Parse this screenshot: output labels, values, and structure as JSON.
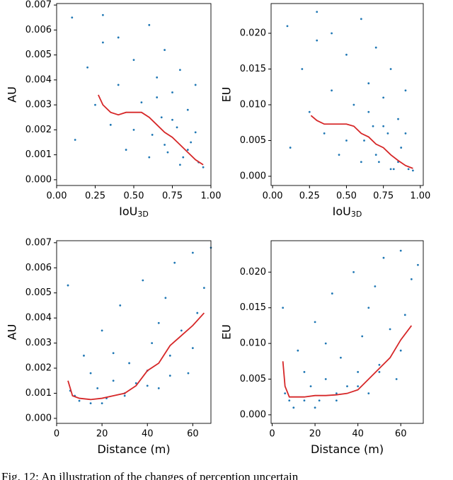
{
  "chart_data": [
    {
      "type": "scatter",
      "ylabel": "AU",
      "xlabel": "IoU",
      "xlabel_sub": "3D",
      "xlim": [
        0,
        1
      ],
      "ylim": [
        -0.00023,
        0.00706
      ],
      "xticks": [
        {
          "value": 0,
          "label": "0.00"
        },
        {
          "value": 0.25,
          "label": "0.25"
        },
        {
          "value": 0.5,
          "label": "0.50"
        },
        {
          "value": 0.75,
          "label": "0.75"
        },
        {
          "value": 1,
          "label": "1.00"
        }
      ],
      "yticks": [
        {
          "value": 0,
          "label": "0.000"
        },
        {
          "value": 0.001,
          "label": "0.001"
        },
        {
          "value": 0.002,
          "label": "0.002"
        },
        {
          "value": 0.003,
          "label": "0.003"
        },
        {
          "value": 0.004,
          "label": "0.004"
        },
        {
          "value": 0.005,
          "label": "0.005"
        },
        {
          "value": 0.006,
          "label": "0.006"
        },
        {
          "value": 0.007,
          "label": "0.007"
        }
      ],
      "series": [
        {
          "kind": "scatter",
          "color": "#1f77b4",
          "x": [
            0.1,
            0.12,
            0.2,
            0.25,
            0.3,
            0.35,
            0.4,
            0.45,
            0.5,
            0.55,
            0.6,
            0.62,
            0.65,
            0.68,
            0.7,
            0.72,
            0.75,
            0.78,
            0.8,
            0.82,
            0.85,
            0.87,
            0.9,
            0.92,
            0.95,
            0.6,
            0.7,
            0.8,
            0.75,
            0.85,
            0.5,
            0.4,
            0.3,
            0.65,
            0.9
          ],
          "values": [
            0.0065,
            0.0016,
            0.0045,
            0.003,
            0.0055,
            0.0022,
            0.0038,
            0.0012,
            0.0048,
            0.0031,
            0.0062,
            0.0018,
            0.0041,
            0.0025,
            0.0052,
            0.0011,
            0.0035,
            0.0021,
            0.0044,
            0.0009,
            0.0028,
            0.0015,
            0.0019,
            0.0007,
            0.0005,
            0.0009,
            0.0014,
            0.0006,
            0.0024,
            0.0012,
            0.002,
            0.0057,
            0.0066,
            0.0033,
            0.0038
          ]
        },
        {
          "kind": "line",
          "color": "#d62728",
          "x": [
            0.27,
            0.3,
            0.35,
            0.4,
            0.45,
            0.5,
            0.55,
            0.6,
            0.65,
            0.7,
            0.75,
            0.8,
            0.85,
            0.9,
            0.95
          ],
          "values": [
            0.0034,
            0.003,
            0.0027,
            0.0026,
            0.0027,
            0.0027,
            0.0027,
            0.0025,
            0.0022,
            0.0019,
            0.0017,
            0.0014,
            0.0011,
            0.0008,
            0.0006
          ]
        }
      ]
    },
    {
      "type": "scatter",
      "ylabel": "EU",
      "xlabel": "IoU",
      "xlabel_sub": "3D",
      "xlim": [
        -0.01,
        1.02
      ],
      "ylim": [
        -0.00129,
        0.02416
      ],
      "xticks": [
        {
          "value": 0,
          "label": "0.00"
        },
        {
          "value": 0.25,
          "label": "0.25"
        },
        {
          "value": 0.5,
          "label": "0.50"
        },
        {
          "value": 0.75,
          "label": "0.75"
        },
        {
          "value": 1,
          "label": "1.00"
        }
      ],
      "yticks": [
        {
          "value": 0,
          "label": "0.000"
        },
        {
          "value": 0.005,
          "label": "0.005"
        },
        {
          "value": 0.01,
          "label": "0.010"
        },
        {
          "value": 0.015,
          "label": "0.015"
        },
        {
          "value": 0.02,
          "label": "0.020"
        }
      ],
      "series": [
        {
          "kind": "scatter",
          "color": "#1f77b4",
          "x": [
            0.1,
            0.12,
            0.2,
            0.25,
            0.3,
            0.35,
            0.4,
            0.45,
            0.5,
            0.55,
            0.6,
            0.62,
            0.65,
            0.68,
            0.7,
            0.72,
            0.75,
            0.78,
            0.8,
            0.82,
            0.85,
            0.87,
            0.9,
            0.92,
            0.95,
            0.6,
            0.7,
            0.8,
            0.75,
            0.85,
            0.5,
            0.4,
            0.3,
            0.65,
            0.9
          ],
          "values": [
            0.021,
            0.004,
            0.015,
            0.009,
            0.019,
            0.006,
            0.012,
            0.003,
            0.017,
            0.01,
            0.022,
            0.005,
            0.013,
            0.007,
            0.018,
            0.002,
            0.011,
            0.006,
            0.015,
            0.001,
            0.008,
            0.004,
            0.006,
            0.001,
            0.0008,
            0.002,
            0.003,
            0.001,
            0.007,
            0.002,
            0.005,
            0.02,
            0.023,
            0.009,
            0.012
          ]
        },
        {
          "kind": "line",
          "color": "#d62728",
          "x": [
            0.26,
            0.3,
            0.35,
            0.4,
            0.45,
            0.5,
            0.55,
            0.6,
            0.65,
            0.7,
            0.75,
            0.8,
            0.85,
            0.9,
            0.95
          ],
          "values": [
            0.0085,
            0.0078,
            0.0073,
            0.0073,
            0.0073,
            0.0073,
            0.007,
            0.006,
            0.0055,
            0.0045,
            0.004,
            0.003,
            0.0022,
            0.0015,
            0.0011
          ]
        }
      ]
    },
    {
      "type": "scatter",
      "ylabel": "AU",
      "xlabel": "Distance (m)",
      "xlim": [
        0,
        68
      ],
      "ylim": [
        -0.0002,
        0.00708
      ],
      "xticks": [
        0,
        20,
        40,
        60
      ],
      "yticks": [
        {
          "value": 0,
          "label": "0.000"
        },
        {
          "value": 0.001,
          "label": "0.001"
        },
        {
          "value": 0.002,
          "label": "0.002"
        },
        {
          "value": 0.003,
          "label": "0.003"
        },
        {
          "value": 0.004,
          "label": "0.004"
        },
        {
          "value": 0.005,
          "label": "0.005"
        },
        {
          "value": 0.006,
          "label": "0.006"
        },
        {
          "value": 0.007,
          "label": "0.007"
        }
      ],
      "series": [
        {
          "kind": "scatter",
          "color": "#1f77b4",
          "x": [
            5,
            6,
            8,
            10,
            12,
            15,
            18,
            20,
            22,
            25,
            28,
            30,
            32,
            35,
            38,
            40,
            42,
            45,
            48,
            50,
            52,
            55,
            58,
            60,
            62,
            65,
            68,
            20,
            30,
            40,
            50,
            60,
            15,
            25,
            45
          ],
          "values": [
            0.0053,
            0.0011,
            0.0009,
            0.0007,
            0.0025,
            0.0006,
            0.0012,
            0.0035,
            0.0008,
            0.0015,
            0.0045,
            0.001,
            0.0022,
            0.0014,
            0.0055,
            0.0019,
            0.003,
            0.0012,
            0.0048,
            0.0025,
            0.0062,
            0.0035,
            0.0018,
            0.0066,
            0.0042,
            0.0052,
            0.0068,
            0.0006,
            0.0009,
            0.0013,
            0.0017,
            0.0028,
            0.0018,
            0.0026,
            0.0038
          ]
        },
        {
          "kind": "line",
          "color": "#d62728",
          "x": [
            5,
            7,
            10,
            15,
            20,
            25,
            30,
            35,
            40,
            45,
            50,
            55,
            60,
            65
          ],
          "values": [
            0.0015,
            0.0009,
            0.0008,
            0.00075,
            0.0008,
            0.0009,
            0.001,
            0.0013,
            0.0019,
            0.0022,
            0.0029,
            0.0033,
            0.0037,
            0.0042
          ]
        }
      ]
    },
    {
      "type": "scatter",
      "ylabel": "EU",
      "xlabel": "Distance (m)",
      "xlim": [
        -0.5,
        70.5
      ],
      "ylim": [
        -0.0012,
        0.0244
      ],
      "xticks": [
        0,
        20,
        40,
        60
      ],
      "yticks": [
        {
          "value": 0,
          "label": "0.000"
        },
        {
          "value": 0.005,
          "label": "0.005"
        },
        {
          "value": 0.01,
          "label": "0.010"
        },
        {
          "value": 0.015,
          "label": "0.015"
        },
        {
          "value": 0.02,
          "label": "0.020"
        }
      ],
      "series": [
        {
          "kind": "scatter",
          "color": "#1f77b4",
          "x": [
            5,
            6,
            8,
            10,
            12,
            15,
            18,
            20,
            22,
            25,
            28,
            30,
            32,
            35,
            38,
            40,
            42,
            45,
            48,
            50,
            52,
            55,
            58,
            60,
            62,
            65,
            68,
            20,
            30,
            40,
            50,
            60,
            15,
            25,
            45
          ],
          "values": [
            0.015,
            0.003,
            0.002,
            0.001,
            0.009,
            0.002,
            0.004,
            0.013,
            0.002,
            0.005,
            0.017,
            0.003,
            0.008,
            0.004,
            0.02,
            0.006,
            0.011,
            0.003,
            0.018,
            0.007,
            0.022,
            0.012,
            0.005,
            0.023,
            0.014,
            0.019,
            0.021,
            0.001,
            0.002,
            0.004,
            0.006,
            0.009,
            0.006,
            0.01,
            0.015
          ]
        },
        {
          "kind": "line",
          "color": "#d62728",
          "x": [
            5,
            6,
            8,
            10,
            15,
            20,
            25,
            30,
            35,
            40,
            45,
            50,
            55,
            60,
            65
          ],
          "values": [
            0.0075,
            0.004,
            0.0025,
            0.0025,
            0.0025,
            0.0027,
            0.0027,
            0.0028,
            0.003,
            0.0035,
            0.005,
            0.0065,
            0.008,
            0.0105,
            0.0125
          ]
        }
      ]
    }
  ],
  "caption": "Fig. 12: An illustration of the changes of perception uncertain"
}
